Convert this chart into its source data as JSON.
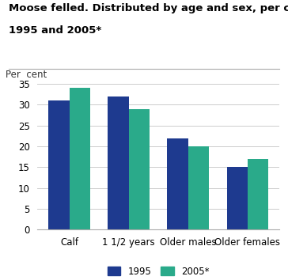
{
  "title_line1": "Moose felled. Distributed by age and sex, per cent.",
  "title_line2": "1995 and 2005*",
  "ylabel": "Per  cent",
  "categories": [
    "Calf",
    "1 1/2 years",
    "Older males",
    "Older females"
  ],
  "values_1995": [
    31,
    32,
    22,
    15
  ],
  "values_2005": [
    34,
    29,
    20,
    17
  ],
  "color_1995": "#1e3a8f",
  "color_2005": "#2aaa8a",
  "ylim": [
    0,
    35
  ],
  "yticks": [
    0,
    5,
    10,
    15,
    20,
    25,
    30,
    35
  ],
  "legend_labels": [
    "1995",
    "2005*"
  ],
  "bar_width": 0.35,
  "background_color": "#ffffff",
  "grid_color": "#cccccc",
  "title_fontsize": 9.5,
  "tick_fontsize": 8.5,
  "legend_fontsize": 8.5
}
